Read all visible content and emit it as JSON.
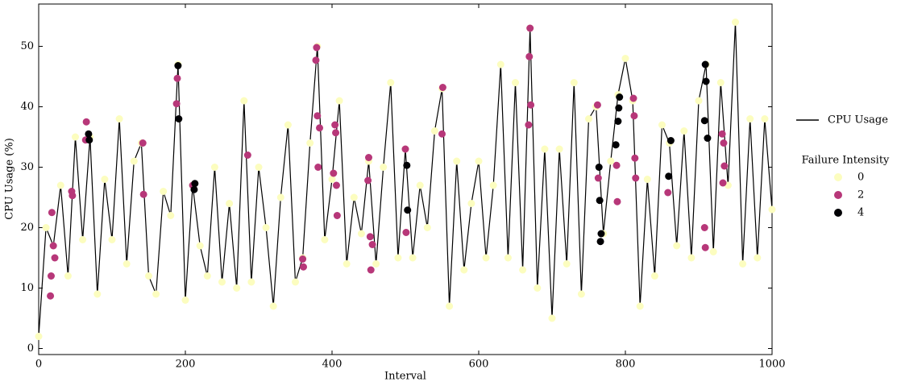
{
  "chart_data": {
    "type": "line",
    "xlabel": "Interval",
    "ylabel": "CPU Usage (%)",
    "xlim": [
      0,
      1000
    ],
    "ylim": [
      -1,
      57
    ],
    "xticks": [
      0,
      200,
      400,
      600,
      800,
      1000
    ],
    "yticks": [
      0,
      10,
      20,
      30,
      40,
      50
    ],
    "legend_title": "Failure Intensity",
    "series": [
      {
        "name": "CPU Usage",
        "color": "#000000",
        "x": [
          0,
          10,
          20,
          30,
          40,
          50,
          60,
          70,
          80,
          90,
          100,
          110,
          120,
          130,
          140,
          150,
          160,
          170,
          180,
          190,
          200,
          210,
          220,
          230,
          240,
          250,
          260,
          270,
          280,
          290,
          300,
          310,
          320,
          330,
          340,
          350,
          360,
          370,
          380,
          390,
          400,
          410,
          420,
          430,
          440,
          450,
          460,
          470,
          480,
          490,
          500,
          510,
          520,
          530,
          540,
          550,
          560,
          570,
          580,
          590,
          600,
          610,
          620,
          630,
          640,
          650,
          660,
          670,
          680,
          690,
          700,
          710,
          720,
          730,
          740,
          750,
          760,
          770,
          780,
          790,
          800,
          810,
          820,
          830,
          840,
          850,
          860,
          870,
          880,
          890,
          900,
          910,
          920,
          930,
          940,
          950,
          960,
          970,
          980,
          990,
          1000
        ],
        "values": [
          2,
          20,
          17,
          27,
          12,
          35,
          18,
          35,
          9,
          28,
          18,
          38,
          14,
          31,
          34,
          12,
          9,
          26,
          22,
          47,
          8,
          27,
          17,
          12,
          30,
          11,
          24,
          10,
          41,
          11,
          30,
          20,
          7,
          25,
          37,
          11,
          15,
          34,
          50,
          18,
          28,
          41,
          14,
          25,
          19,
          31,
          14,
          30,
          44,
          15,
          33,
          15,
          27,
          20,
          36,
          43,
          7,
          31,
          13,
          24,
          31,
          15,
          27,
          47,
          15,
          44,
          13,
          53,
          10,
          33,
          5,
          33,
          14,
          44,
          9,
          38,
          40,
          19,
          31,
          42,
          48,
          41,
          7,
          28,
          12,
          37,
          34,
          17,
          36,
          15,
          41,
          47,
          16,
          44,
          27,
          54,
          14,
          38,
          15,
          38,
          23
        ]
      },
      {
        "name": "0",
        "type": "scatter",
        "color": "#fcfdbf",
        "x": [
          0,
          10,
          20,
          30,
          40,
          50,
          60,
          70,
          80,
          90,
          100,
          110,
          120,
          130,
          140,
          150,
          160,
          170,
          180,
          190,
          200,
          210,
          220,
          230,
          240,
          250,
          260,
          270,
          280,
          290,
          300,
          310,
          320,
          330,
          340,
          350,
          360,
          370,
          380,
          390,
          400,
          410,
          420,
          430,
          440,
          450,
          460,
          470,
          480,
          490,
          500,
          510,
          520,
          530,
          540,
          550,
          560,
          570,
          580,
          590,
          600,
          610,
          620,
          630,
          640,
          650,
          660,
          670,
          680,
          690,
          700,
          710,
          720,
          730,
          740,
          750,
          760,
          770,
          780,
          790,
          800,
          810,
          820,
          830,
          840,
          850,
          860,
          870,
          880,
          890,
          900,
          910,
          920,
          930,
          940,
          950,
          960,
          970,
          980,
          990,
          1000
        ],
        "values": [
          2,
          20,
          17,
          27,
          12,
          35,
          18,
          35,
          9,
          28,
          18,
          38,
          14,
          31,
          34,
          12,
          9,
          26,
          22,
          47,
          8,
          27,
          17,
          12,
          30,
          11,
          24,
          10,
          41,
          11,
          30,
          20,
          7,
          25,
          37,
          11,
          15,
          34,
          50,
          18,
          28,
          41,
          14,
          25,
          19,
          31,
          14,
          30,
          44,
          15,
          33,
          15,
          27,
          20,
          36,
          43,
          7,
          31,
          13,
          24,
          31,
          15,
          27,
          47,
          15,
          44,
          13,
          53,
          10,
          33,
          5,
          33,
          14,
          44,
          9,
          38,
          40,
          19,
          31,
          42,
          48,
          41,
          7,
          28,
          12,
          37,
          34,
          17,
          36,
          15,
          41,
          47,
          16,
          44,
          27,
          54,
          14,
          38,
          15,
          38,
          23
        ]
      },
      {
        "name": "2",
        "type": "scatter",
        "color": "#b73779",
        "x": [
          16,
          17,
          18,
          20,
          22,
          45,
          46,
          64,
          65,
          142,
          143,
          188,
          189,
          210,
          285,
          360,
          361,
          378,
          379,
          380,
          381,
          383,
          402,
          404,
          405,
          406,
          407,
          449,
          450,
          452,
          453,
          455,
          500,
          501,
          550,
          551,
          668,
          669,
          670,
          671,
          762,
          763,
          788,
          789,
          811,
          812,
          813,
          814,
          858,
          908,
          909,
          932,
          933,
          934,
          935
        ],
        "values": [
          8.7,
          12,
          22.5,
          17,
          15,
          26,
          25.3,
          34.5,
          37.5,
          34,
          25.5,
          40.5,
          44.7,
          27,
          32,
          14.8,
          13.5,
          47.7,
          49.8,
          38.5,
          30,
          36.5,
          29,
          37,
          35.7,
          27,
          22,
          27.8,
          31.6,
          18.5,
          13,
          17.2,
          33,
          19.2,
          35.5,
          43.2,
          37,
          48.3,
          53,
          40.3,
          40.3,
          28.2,
          30.3,
          24.3,
          41.4,
          38.5,
          31.5,
          28.2,
          25.8,
          20,
          16.7,
          35.5,
          27.4,
          34,
          30.2
        ]
      },
      {
        "name": "4",
        "type": "scatter",
        "color": "#000004",
        "x": [
          68,
          69,
          190,
          191,
          212,
          213,
          502,
          503,
          764,
          765,
          766,
          767,
          787,
          790,
          791,
          792,
          859,
          862,
          908,
          909,
          910,
          912
        ],
        "values": [
          35.5,
          34.5,
          46.8,
          38,
          26.3,
          27.3,
          30.3,
          22.9,
          30,
          24.5,
          17.7,
          19,
          33.7,
          37.6,
          39.8,
          41.6,
          28.5,
          34.4,
          37.7,
          47,
          44.2,
          34.8
        ]
      }
    ]
  }
}
